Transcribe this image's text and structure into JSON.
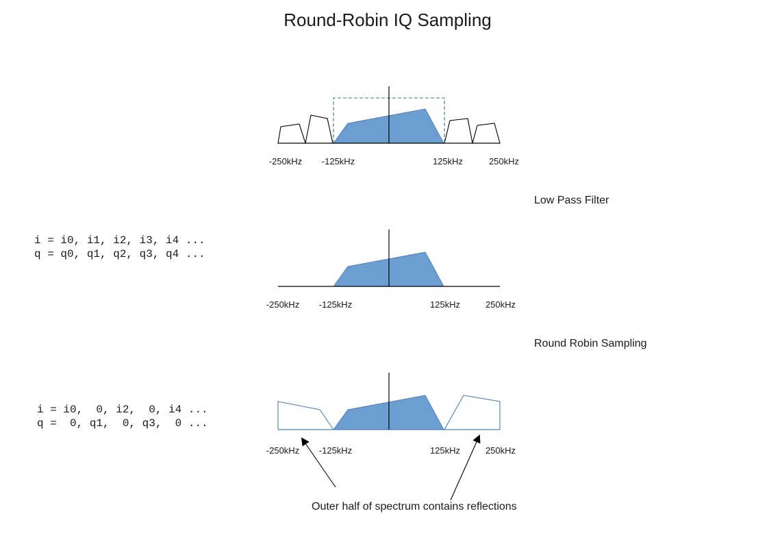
{
  "title": "Round-Robin IQ Sampling",
  "colors": {
    "spectrum_fill": "#6d9ed2",
    "spectrum_edge": "#4f7fb6",
    "filter_box": "#2e7d6a",
    "line": "#000000"
  },
  "panels": [
    {
      "id": "original",
      "freq_labels": [
        "-250kHz",
        "-125kHz",
        "125kHz",
        "250kHz"
      ]
    },
    {
      "id": "lowpass",
      "stage_label": "Low Pass Filter",
      "code_lines": [
        "i = i0, i1, i2, i3, i4 ...",
        "q = q0, q1, q2, q3, q4 ..."
      ],
      "freq_labels": [
        "-250kHz",
        "-125kHz",
        "125kHz",
        "250kHz"
      ]
    },
    {
      "id": "roundrobin",
      "stage_label": "Round Robin Sampling",
      "code_lines": [
        "i = i0,  0, i2,  0, i4 ...",
        "q =  0, q1,  0, q3,  0 ..."
      ],
      "freq_labels": [
        "-250kHz",
        "-125kHz",
        "125kHz",
        "250kHz"
      ]
    }
  ],
  "annotation": "Outer half of spectrum contains reflections"
}
